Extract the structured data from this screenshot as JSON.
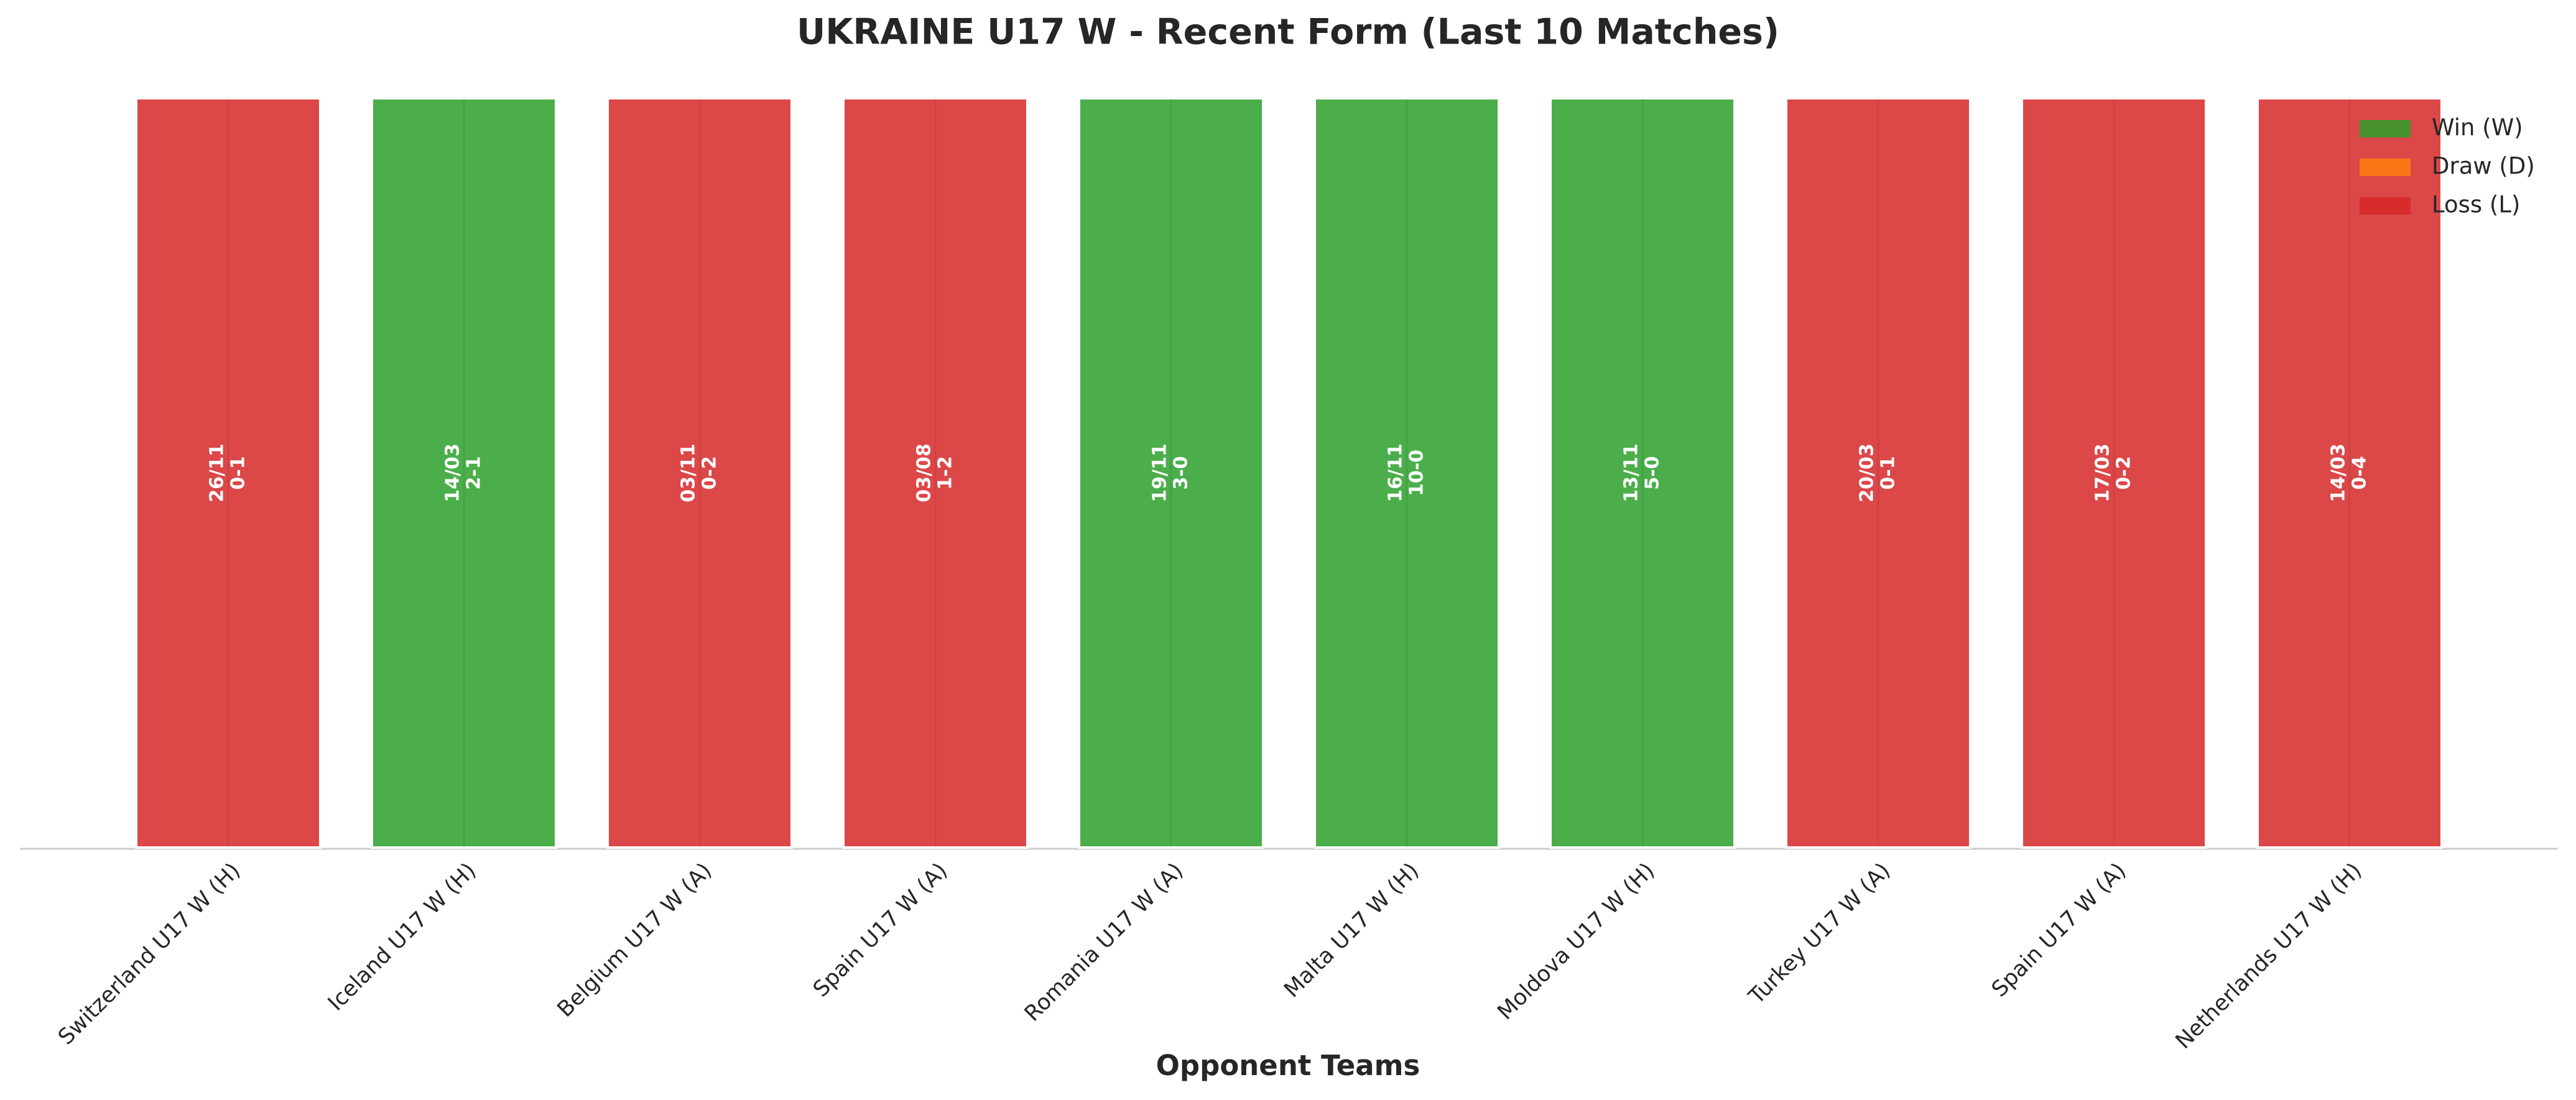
{
  "chart_data": {
    "type": "bar",
    "title": "UKRAINE U17 W - Recent Form (Last 10 Matches)",
    "x_label": "Opponent Teams",
    "categories": [
      "Switzerland U17 W (H)",
      "Iceland U17 W (H)",
      "Belgium U17 W (A)",
      "Spain U17 W (A)",
      "Romania U17 W (A)",
      "Malta U17 W (H)",
      "Moldova U17 W (H)",
      "Turkey U17 W (A)",
      "Spain U17 W (A)",
      "Netherlands U17 W (H)"
    ],
    "values": [
      1,
      1,
      1,
      1,
      1,
      1,
      1,
      1,
      1,
      1
    ],
    "dates": [
      "26/11",
      "14/03",
      "03/11",
      "03/08",
      "19/11",
      "16/11",
      "13/11",
      "20/03",
      "17/03",
      "14/03"
    ],
    "scores": [
      "0-1",
      "2-1",
      "0-2",
      "1-2",
      "3-0",
      "10-0",
      "5-0",
      "0-1",
      "0-2",
      "0-4"
    ],
    "colors": [
      "#d62728",
      "#2ca02c",
      "#d62728",
      "#d62728",
      "#2ca02c",
      "#2ca02c",
      "#2ca02c",
      "#d62728",
      "#d62728",
      "#d62728"
    ],
    "ylim": [
      0,
      1
    ],
    "legend": {
      "position": "upper right",
      "entries": [
        {
          "name": "Win (W)",
          "color": "#2ca02c"
        },
        {
          "name": "Draw (D)",
          "color": "#ff7f0e"
        },
        {
          "name": "Loss (L)",
          "color": "#d62728"
        }
      ]
    }
  }
}
